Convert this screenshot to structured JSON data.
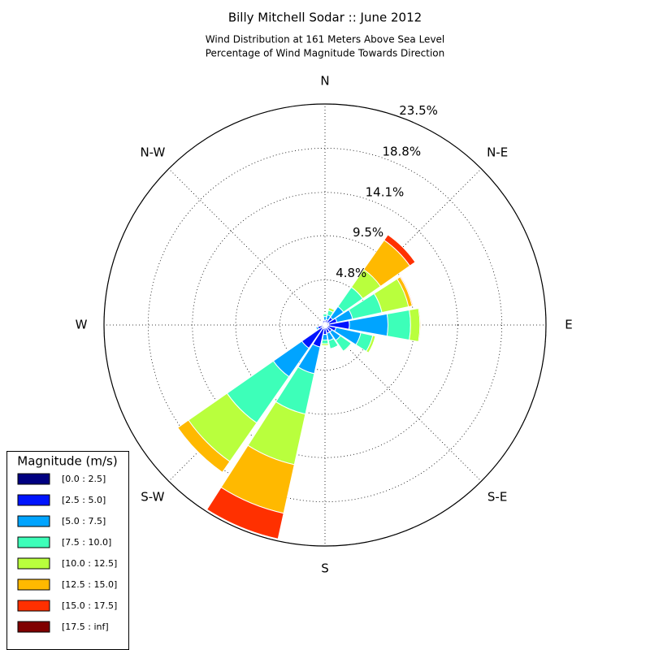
{
  "chart_data": {
    "type": "windrose",
    "title": "Billy Mitchell Sodar :: June 2012",
    "subtitle": [
      "Wind Distribution at 161 Meters Above Sea Level",
      "Percentage of Wind Magnitude Towards Direction"
    ],
    "categories": [
      "N",
      null,
      "N-E",
      null,
      "E",
      null,
      "S-E",
      null,
      "S",
      null,
      "S-W",
      null,
      "W",
      null,
      "N-W",
      null
    ],
    "ylim": [
      0,
      23.5
    ],
    "yticks": [
      {
        "value": 4.8,
        "label": "4.8%"
      },
      {
        "value": 9.5,
        "label": "9.5%"
      },
      {
        "value": 14.1,
        "label": "14.1%"
      },
      {
        "value": 18.8,
        "label": "18.8%"
      },
      {
        "value": 23.5,
        "label": "23.5%"
      }
    ],
    "grid": true,
    "legend": {
      "title": "Magnitude (m/s)",
      "position": "lower left"
    },
    "series": [
      {
        "name": "[0.0 : 2.5]",
        "color": "#000080",
        "values": [
          0.2,
          0.2,
          0.3,
          0.4,
          0.4,
          0.3,
          0.3,
          0.3,
          0.3,
          0.4,
          0.4,
          0.3,
          0.2,
          0.2,
          0.2,
          0.2
        ]
      },
      {
        "name": "[2.5 : 5.0]",
        "color": "#0014ff",
        "values": [
          0.3,
          0.4,
          0.7,
          0.9,
          2.2,
          0.9,
          0.6,
          0.6,
          0.7,
          2.0,
          2.6,
          0.5,
          0.2,
          0.1,
          0.2,
          0.3
        ]
      },
      {
        "name": "[5.0 : 7.5]",
        "color": "#00a4ff",
        "values": [
          0.4,
          0.5,
          1.4,
          1.7,
          4.1,
          2.7,
          1.1,
          0.8,
          0.6,
          2.9,
          3.7,
          0.2,
          0,
          0,
          0,
          0.1
        ]
      },
      {
        "name": "[7.5 : 10.0]",
        "color": "#3dffb9",
        "values": [
          0.3,
          0.5,
          2.5,
          3.2,
          2.4,
          1.3,
          1.4,
          0.9,
          0.4,
          4.4,
          6.0,
          0,
          0,
          0,
          0,
          0
        ]
      },
      {
        "name": "[10.0 : 12.5]",
        "color": "#b9ff3d",
        "values": [
          0,
          0.3,
          2.3,
          2.9,
          1.0,
          0.3,
          0.1,
          0,
          0.2,
          5.5,
          5.0,
          0,
          0,
          0,
          0,
          0
        ]
      },
      {
        "name": "[12.5 : 15.0]",
        "color": "#ffb900",
        "values": [
          0,
          0,
          3.8,
          0.4,
          0.1,
          0,
          0,
          0,
          0,
          5.3,
          1.4,
          0,
          0,
          0,
          0,
          0
        ]
      },
      {
        "name": "[15.0 : 17.5]",
        "color": "#ff3000",
        "values": [
          0,
          0,
          0.7,
          0.1,
          0,
          0,
          0,
          0,
          0,
          2.8,
          0,
          0,
          0,
          0,
          0,
          0
        ]
      },
      {
        "name": "[17.5 : inf]",
        "color": "#800000",
        "values": [
          0,
          0,
          0,
          0,
          0,
          0,
          0,
          0,
          0,
          0,
          0,
          0,
          0,
          0,
          0,
          0
        ]
      }
    ]
  }
}
